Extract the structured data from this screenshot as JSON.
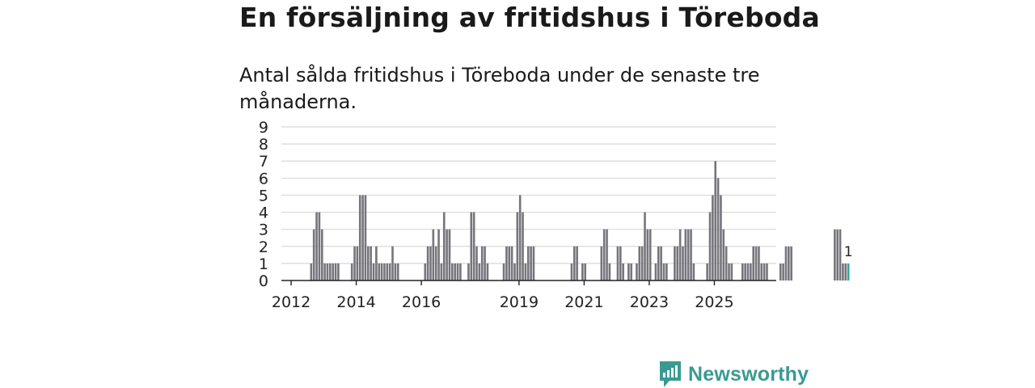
{
  "chart_data": {
    "type": "bar",
    "title": "En försäljning av fritidshus i Töreboda",
    "subtitle": "Antal sålda fritidshus i Töreboda under de senaste tre månaderna.",
    "xlabel": "",
    "ylabel": "",
    "ylim": [
      0,
      9
    ],
    "yticks": [
      "0",
      "1",
      "2",
      "3",
      "4",
      "5",
      "6",
      "7",
      "8",
      "9"
    ],
    "xticks": [
      {
        "label": "2012",
        "year": 2012
      },
      {
        "label": "2014",
        "year": 2014
      },
      {
        "label": "2016",
        "year": 2016
      },
      {
        "label": "2019",
        "year": 2019
      },
      {
        "label": "2021",
        "year": 2021
      },
      {
        "label": "2023",
        "year": 2023
      },
      {
        "label": "2025",
        "year": 2025
      }
    ],
    "start": "2011-10",
    "grid": true,
    "colors": {
      "bar": "#75757c",
      "highlight": "#2aa89a",
      "grid": "#d9d9d9",
      "axis": "#222222"
    },
    "values": [
      0,
      0,
      0,
      0,
      0,
      0,
      0,
      0,
      0,
      0,
      1,
      3,
      4,
      4,
      3,
      1,
      1,
      1,
      1,
      1,
      1,
      0,
      0,
      0,
      0,
      1,
      2,
      2,
      5,
      5,
      5,
      2,
      2,
      1,
      2,
      1,
      1,
      1,
      1,
      1,
      2,
      1,
      1,
      0,
      0,
      0,
      0,
      0,
      0,
      0,
      0,
      0,
      1,
      2,
      2,
      3,
      2,
      3,
      1,
      4,
      3,
      3,
      1,
      1,
      1,
      1,
      0,
      0,
      1,
      4,
      4,
      2,
      1,
      2,
      2,
      1,
      0,
      0,
      0,
      0,
      0,
      1,
      2,
      2,
      2,
      1,
      4,
      5,
      4,
      1,
      2,
      2,
      2,
      0,
      0,
      0,
      0,
      0,
      0,
      0,
      0,
      0,
      0,
      0,
      0,
      0,
      1,
      2,
      2,
      0,
      1,
      1,
      0,
      0,
      0,
      0,
      0,
      2,
      3,
      3,
      1,
      0,
      0,
      2,
      2,
      1,
      0,
      1,
      1,
      0,
      1,
      2,
      2,
      4,
      3,
      3,
      0,
      1,
      2,
      2,
      1,
      1,
      0,
      0,
      2,
      2,
      3,
      2,
      3,
      3,
      3,
      1,
      0,
      0,
      0,
      0,
      1,
      4,
      5,
      7,
      6,
      5,
      3,
      2,
      1,
      1,
      0,
      0,
      0,
      1,
      1,
      1,
      1,
      2,
      2,
      2,
      1,
      1,
      1,
      0,
      0,
      0,
      0,
      1,
      1,
      2,
      2,
      2,
      0,
      0,
      0,
      0,
      0,
      0,
      0,
      0,
      0,
      0,
      0,
      0,
      0,
      0,
      0,
      3,
      3,
      3,
      1,
      1,
      1
    ],
    "last_value_label": "1"
  },
  "brand": {
    "name": "Newsworthy",
    "logo_icon": "newsworthy-logo-icon"
  }
}
